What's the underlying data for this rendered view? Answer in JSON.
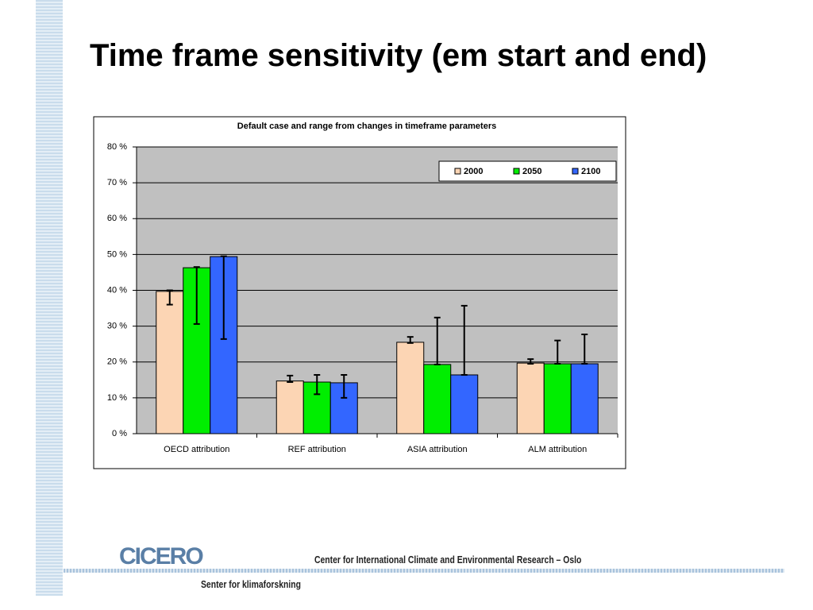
{
  "slide": {
    "title": "Time frame sensitivity (em start and end)",
    "logo": "CICERO",
    "institution": "Center for International Climate and Environmental Research – Oslo",
    "tagline": "Senter for klimaforskning"
  },
  "chart_data": {
    "type": "bar",
    "title": "Default case and range from changes in timeframe parameters",
    "categories": [
      "OECD attribution",
      "REF attribution",
      "ASIA attribution",
      "ALM attribution"
    ],
    "series": [
      {
        "name": "2000",
        "color": "#fcd5b4",
        "values": [
          39.7,
          14.7,
          25.5,
          19.7
        ],
        "low": [
          36,
          14.4,
          25.3,
          19.5
        ],
        "high": [
          40,
          16.2,
          27,
          20.8
        ]
      },
      {
        "name": "2050",
        "color": "#00ee00",
        "values": [
          46.3,
          14.4,
          19.3,
          19.5
        ],
        "low": [
          30.6,
          11,
          19.3,
          19.5
        ],
        "high": [
          46.5,
          16.4,
          32.4,
          26
        ]
      },
      {
        "name": "2100",
        "color": "#3366ff",
        "values": [
          49.4,
          14.2,
          16.4,
          19.5
        ],
        "low": [
          26.4,
          10,
          16.4,
          19.5
        ],
        "high": [
          49.5,
          16.4,
          35.7,
          27.7
        ]
      }
    ],
    "ylim": [
      0,
      80
    ],
    "yticks": [
      {
        "value": 0,
        "label": "0 %"
      },
      {
        "value": 10,
        "label": "10 %"
      },
      {
        "value": 20,
        "label": "20 %"
      },
      {
        "value": 30,
        "label": "30 %"
      },
      {
        "value": 40,
        "label": "40 %"
      },
      {
        "value": 50,
        "label": "50 %"
      },
      {
        "value": 60,
        "label": "60 %"
      },
      {
        "value": 70,
        "label": "70 %"
      },
      {
        "value": 80,
        "label": "80 %"
      }
    ],
    "grid": true,
    "legend": "top-right"
  }
}
